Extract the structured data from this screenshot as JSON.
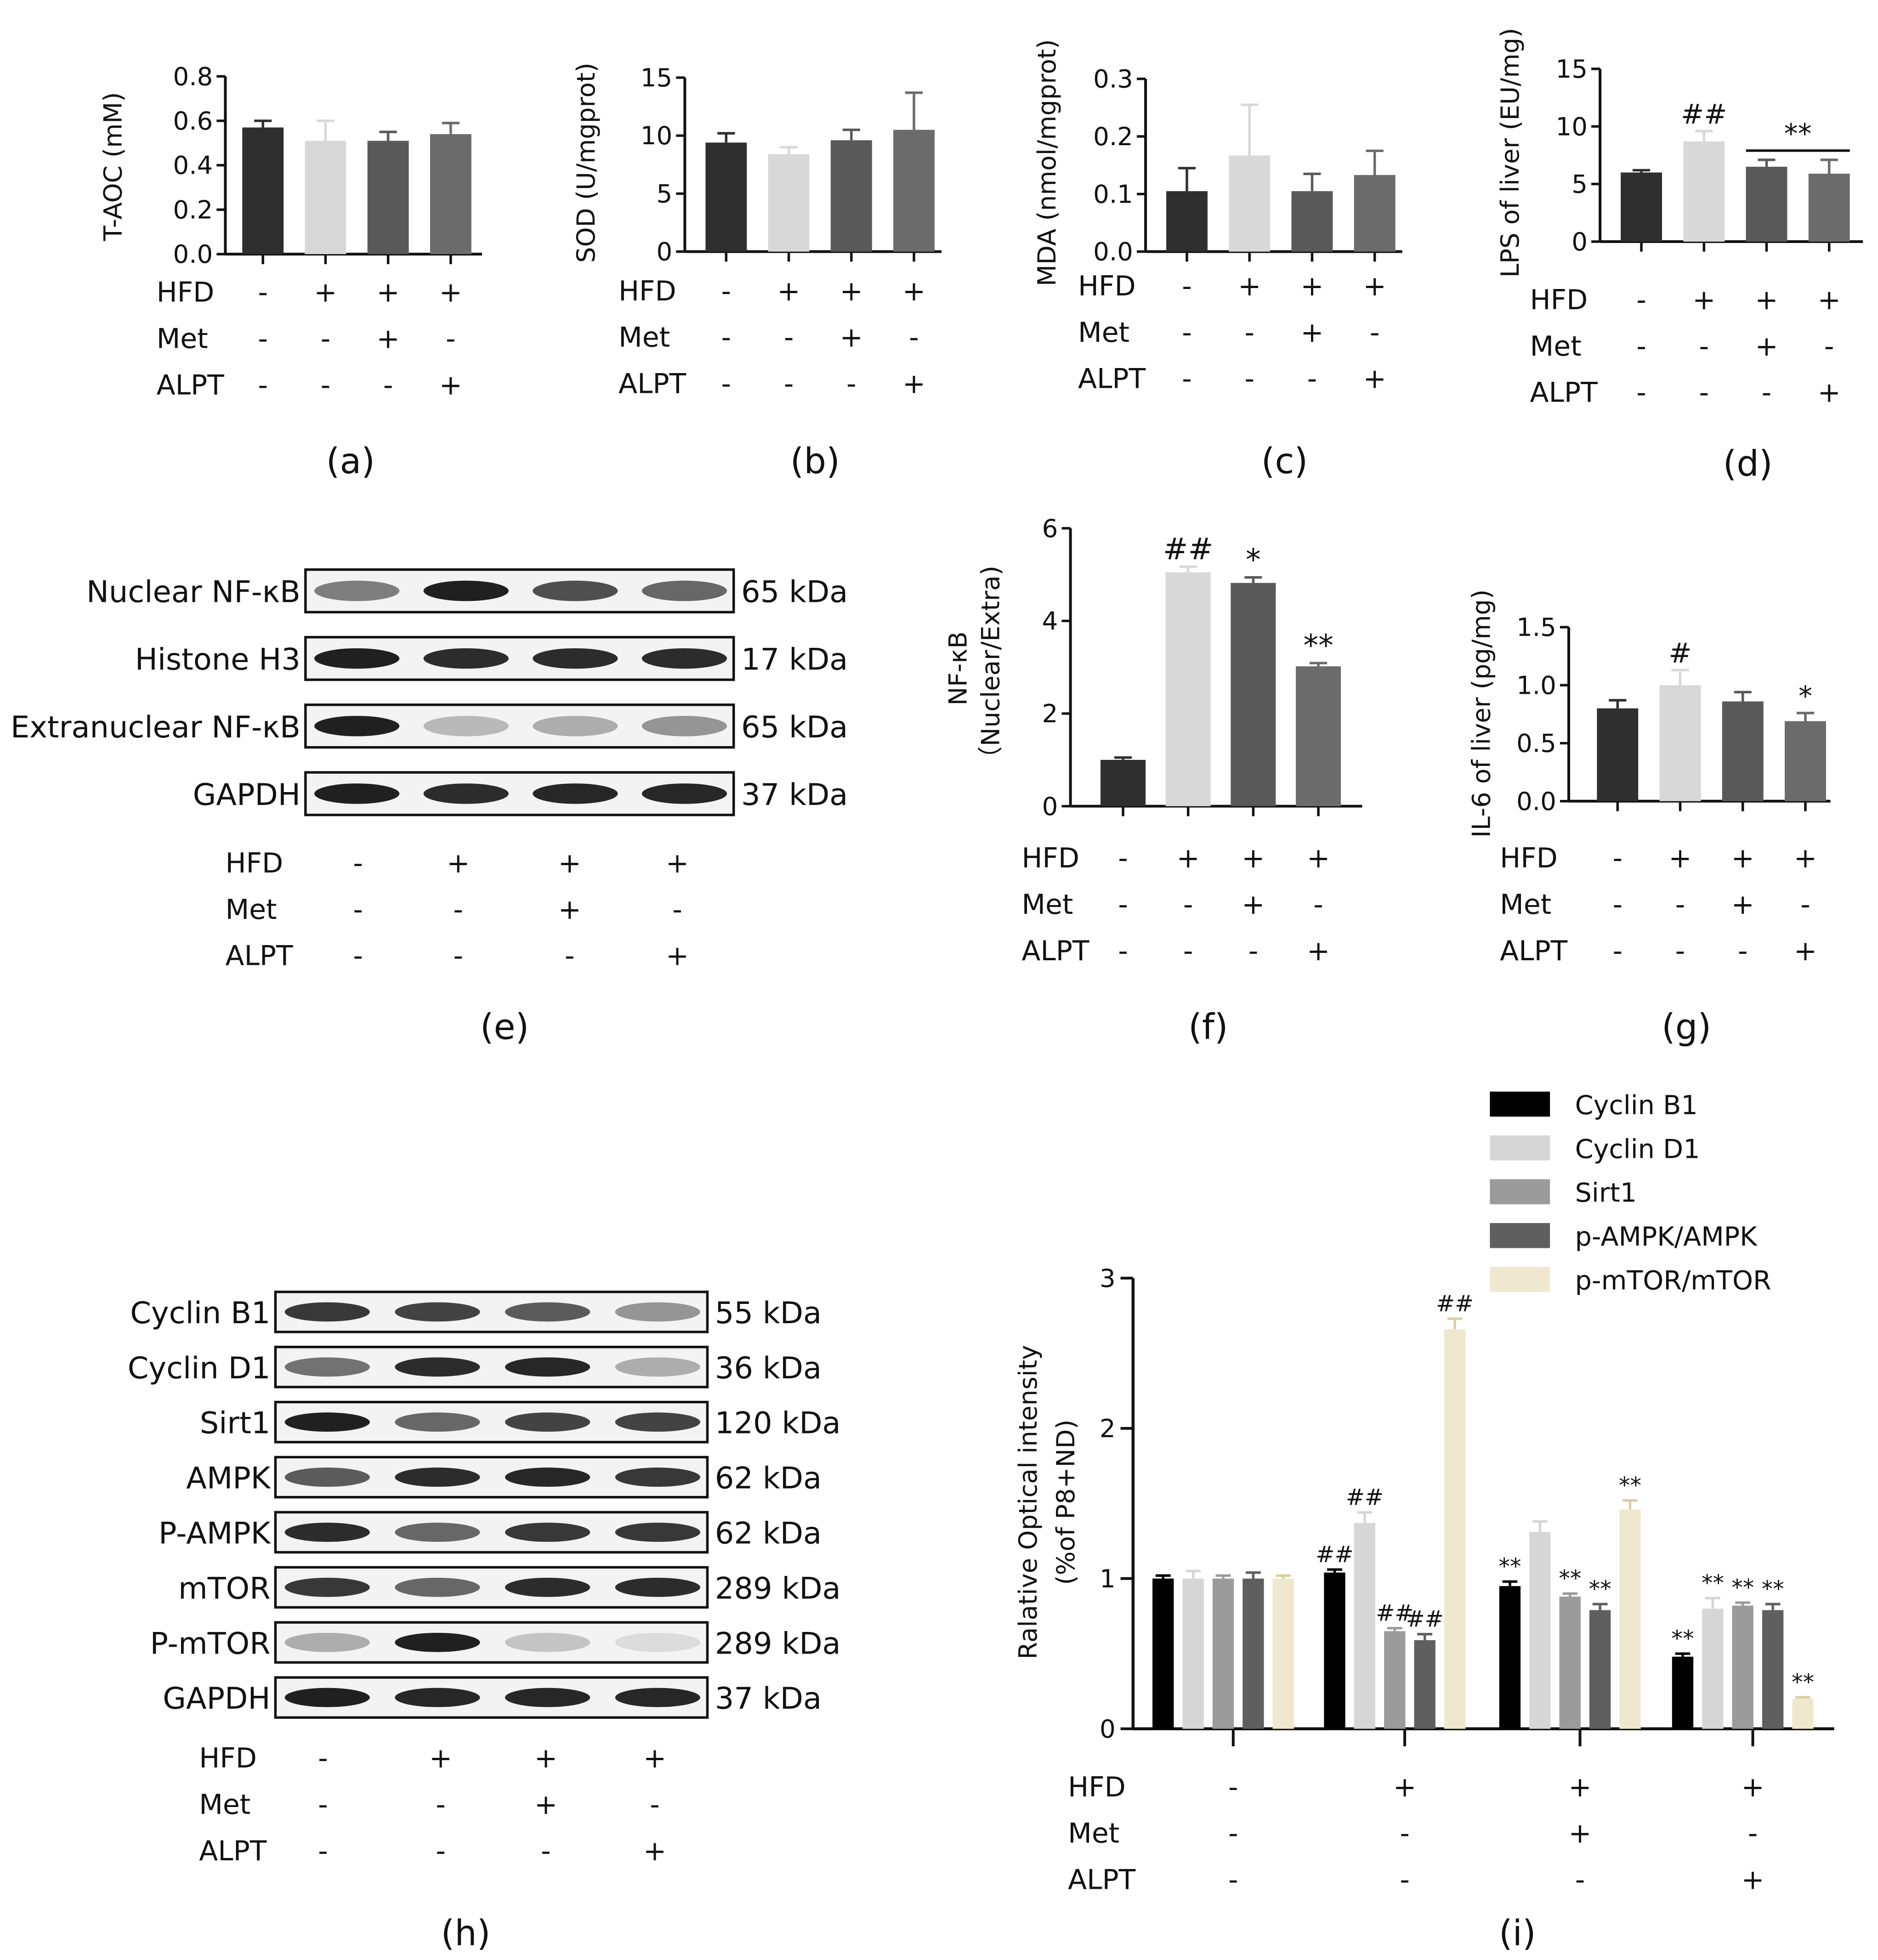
{
  "figure": {
    "panel_labels": [
      "(a)",
      "(b)",
      "(c)",
      "(d)",
      "(e)",
      "(f)",
      "(g)",
      "(h)",
      "(i)"
    ],
    "treatment_row_labels": [
      "HFD",
      "Met",
      "ALPT"
    ],
    "treatment_matrix": {
      "HFD": [
        "-",
        "+",
        "+",
        "+"
      ],
      "Met": [
        "-",
        "-",
        "+",
        "-"
      ],
      "ALPT": [
        "-",
        "-",
        "-",
        "+"
      ]
    },
    "colors": {
      "g1": "#2f2f2f",
      "g2": "#d8d8d8",
      "g3": "#595959",
      "g4": "#6b6b6b",
      "i_series": [
        "#000000",
        "#d6d6d6",
        "#9b9b9b",
        "#5f5f5f",
        "#efe8cf"
      ]
    }
  },
  "chart_data": [
    {
      "panel": "(a)",
      "type": "bar",
      "ylabel": "T-AOC (mM)",
      "ylim": [
        0,
        0.8
      ],
      "yticks": [
        "0.0",
        "0.2",
        "0.4",
        "0.6",
        "0.8"
      ],
      "values": [
        0.57,
        0.51,
        0.51,
        0.54
      ],
      "errors": [
        0.03,
        0.09,
        0.04,
        0.05
      ],
      "annotations": [
        "",
        "",
        "",
        ""
      ]
    },
    {
      "panel": "(b)",
      "type": "bar",
      "ylabel": "SOD (U/mgprot)",
      "ylim": [
        0,
        15
      ],
      "yticks": [
        "0",
        "5",
        "10",
        "15"
      ],
      "values": [
        9.4,
        8.4,
        9.6,
        10.5
      ],
      "errors": [
        0.8,
        0.6,
        0.9,
        3.2
      ],
      "annotations": [
        "",
        "",
        "",
        ""
      ]
    },
    {
      "panel": "(c)",
      "type": "bar",
      "ylabel": "MDA (nmol/mgprot)",
      "ylim": [
        0,
        0.3
      ],
      "yticks": [
        "0.0",
        "0.1",
        "0.2",
        "0.3"
      ],
      "values": [
        0.105,
        0.167,
        0.105,
        0.133
      ],
      "errors": [
        0.04,
        0.088,
        0.03,
        0.042
      ],
      "annotations": [
        "",
        "",
        "",
        ""
      ]
    },
    {
      "panel": "(d)",
      "type": "bar",
      "ylabel": "LPS of liver (EU/mg)",
      "ylim": [
        0,
        15
      ],
      "yticks": [
        "0",
        "5",
        "10",
        "15"
      ],
      "values": [
        6.0,
        8.7,
        6.5,
        5.9
      ],
      "errors": [
        0.2,
        0.9,
        0.6,
        1.2
      ],
      "annotations": [
        "",
        "##",
        "",
        ""
      ],
      "bracket_label": "**"
    },
    {
      "panel": "(f)",
      "type": "bar",
      "ylabel_lines": [
        "NF-κB",
        "（Nuclear/Extra)"
      ],
      "ylim": [
        0,
        6
      ],
      "yticks": [
        "0",
        "2",
        "4",
        "6"
      ],
      "values": [
        1.0,
        5.05,
        4.82,
        3.02
      ],
      "errors": [
        0.05,
        0.12,
        0.12,
        0.07
      ],
      "annotations": [
        "",
        "##",
        "*",
        "**"
      ]
    },
    {
      "panel": "(g)",
      "type": "bar",
      "ylabel": "IL-6 of liver (pg/mg)",
      "ylim": [
        0,
        1.5
      ],
      "yticks": [
        "0.0",
        "0.5",
        "1.0",
        "1.5"
      ],
      "values": [
        0.8,
        1.0,
        0.86,
        0.69
      ],
      "errors": [
        0.07,
        0.13,
        0.08,
        0.07
      ],
      "annotations": [
        "",
        "#",
        "",
        "*"
      ]
    },
    {
      "panel": "(i)",
      "type": "bar",
      "ylabel_lines": [
        "Ralative Optical intensity",
        "(%of P8+ND)"
      ],
      "ylim": [
        0,
        3
      ],
      "yticks": [
        "0",
        "1",
        "2",
        "3"
      ],
      "legend": [
        "Cyclin B1",
        "Cyclin D1",
        "Sirt1",
        "p-AMPK/AMPK",
        "p-mTOR/mTOR"
      ],
      "series": [
        {
          "name": "Cyclin B1",
          "values": [
            1.0,
            1.04,
            0.95,
            0.48
          ],
          "errors": [
            0.02,
            0.02,
            0.03,
            0.02
          ],
          "annotations": [
            "",
            "##",
            "**",
            "**"
          ]
        },
        {
          "name": "Cyclin D1",
          "values": [
            1.0,
            1.37,
            1.31,
            0.8
          ],
          "errors": [
            0.05,
            0.07,
            0.07,
            0.07
          ],
          "annotations": [
            "",
            "##",
            "",
            "**"
          ]
        },
        {
          "name": "Sirt1",
          "values": [
            1.0,
            0.65,
            0.88,
            0.82
          ],
          "errors": [
            0.02,
            0.02,
            0.02,
            0.02
          ],
          "annotations": [
            "",
            "##",
            "**",
            "**"
          ]
        },
        {
          "name": "p-AMPK/AMPK",
          "values": [
            1.0,
            0.59,
            0.79,
            0.79
          ],
          "errors": [
            0.04,
            0.04,
            0.04,
            0.04
          ],
          "annotations": [
            "",
            "##",
            "**",
            "**"
          ]
        },
        {
          "name": "p-mTOR/mTOR",
          "values": [
            1.0,
            2.66,
            1.46,
            0.2
          ],
          "errors": [
            0.02,
            0.07,
            0.06,
            0.01
          ],
          "annotations": [
            "",
            "##",
            "**",
            "**"
          ]
        }
      ]
    }
  ],
  "blots": {
    "e": {
      "rows": [
        {
          "name": "Nuclear NF-κB",
          "kda": "65 kDa"
        },
        {
          "name": "Histone H3",
          "kda": "17 kDa"
        },
        {
          "name": "Extranuclear NF-κB",
          "kda": "65 kDa"
        },
        {
          "name": "GAPDH",
          "kda": "37 kDa"
        }
      ],
      "band_intensity": [
        [
          0.55,
          0.95,
          0.75,
          0.65
        ],
        [
          0.95,
          0.9,
          0.9,
          0.9
        ],
        [
          0.95,
          0.3,
          0.35,
          0.45
        ],
        [
          0.95,
          0.9,
          0.92,
          0.92
        ]
      ]
    },
    "h": {
      "rows": [
        {
          "name": "Cyclin B1",
          "kda": "55 kDa"
        },
        {
          "name": "Cyclin D1",
          "kda": "36 kDa"
        },
        {
          "name": "Sirt1",
          "kda": "120 kDa"
        },
        {
          "name": "AMPK",
          "kda": "62 kDa"
        },
        {
          "name": "P-AMPK",
          "kda": "62 kDa"
        },
        {
          "name": "mTOR",
          "kda": "289 kDa"
        },
        {
          "name": "P-mTOR",
          "kda": "289 kDa"
        },
        {
          "name": "GAPDH",
          "kda": "37 kDa"
        }
      ],
      "band_intensity": [
        [
          0.85,
          0.8,
          0.7,
          0.45
        ],
        [
          0.6,
          0.9,
          0.92,
          0.35
        ],
        [
          0.95,
          0.65,
          0.8,
          0.8
        ],
        [
          0.7,
          0.9,
          0.92,
          0.85
        ],
        [
          0.9,
          0.65,
          0.85,
          0.85
        ],
        [
          0.85,
          0.65,
          0.9,
          0.9
        ],
        [
          0.35,
          0.95,
          0.25,
          0.15
        ],
        [
          0.95,
          0.92,
          0.92,
          0.92
        ]
      ]
    }
  }
}
